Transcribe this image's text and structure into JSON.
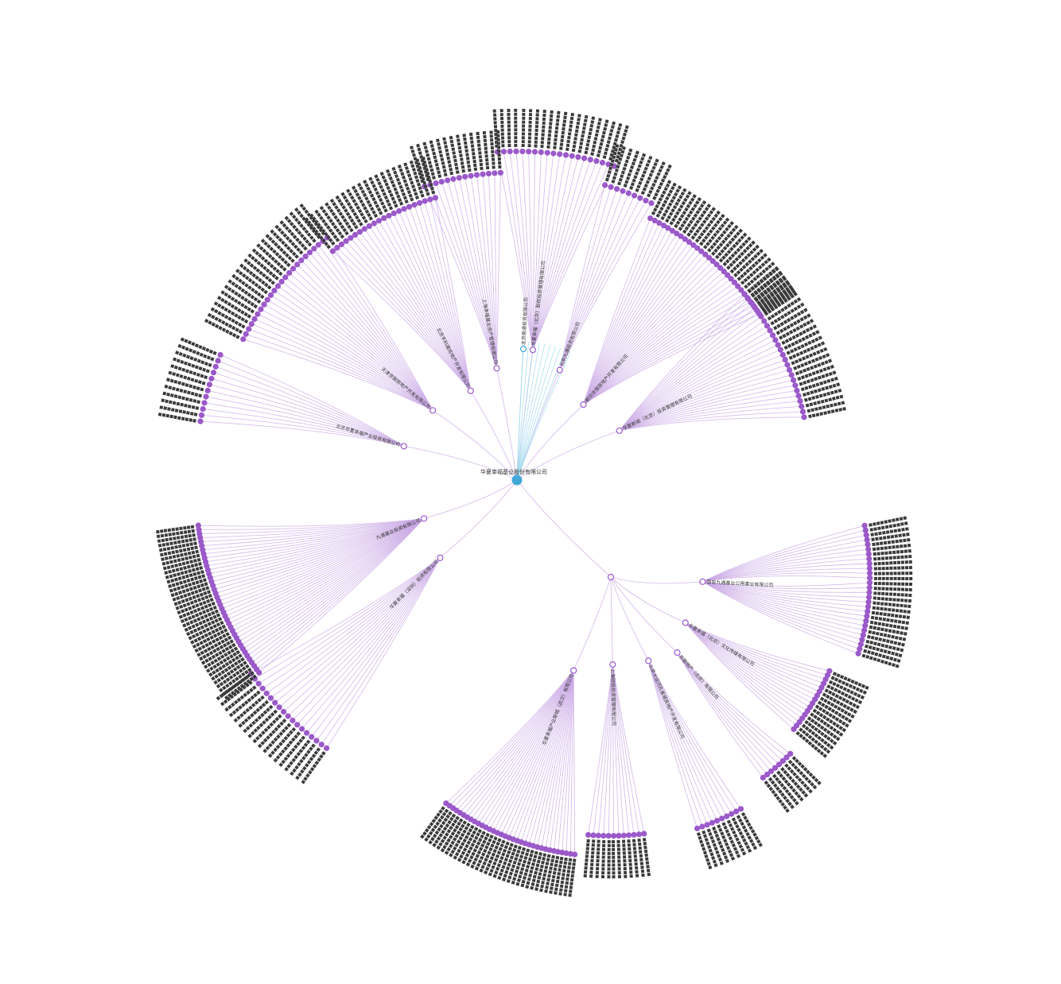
{
  "diagram": {
    "type": "radial-tree",
    "root": {
      "label": "华夏幸福基业股份有限公司"
    },
    "colors": {
      "primary_node": "#9b59c9",
      "primary_link": "#c9a8e6",
      "highlight_node": "#43a8d8",
      "highlight_link": "#9ed8ec",
      "label": "#3a3a3a",
      "background": "#ffffff"
    },
    "branches": [
      {
        "label": "北京丰科建房地产开发有限公司",
        "children": 22
      },
      {
        "label": "上海幸福基业资产管理有限公司",
        "children": 14
      },
      {
        "label": "华夏幸福（北京）股权投资管理有限公司",
        "children": 20
      },
      {
        "label": "北京九通投资有限公司",
        "children": 9
      },
      {
        "label": "廊坊京御房地产开发有限公司",
        "children": 30
      },
      {
        "label": "华夏新城（北京）投资管理有限公司",
        "children": 26
      },
      {
        "label": "天津京御房地产开发有限公司",
        "children": 24
      },
      {
        "label": "北京华夏幸福产业投资有限公司",
        "children": 12
      },
      {
        "label": "九通基业投资有限公司",
        "children": 40
      },
      {
        "label": "华夏幸福（深圳）投资有限公司",
        "children": 18
      },
      {
        "label": "固安九通基业公用事业有限公司",
        "children": 28
      },
      {
        "label": "华夏幸福（北京）文化传媒有限公司",
        "children": 16
      },
      {
        "label": "北京大运河孔雀城房地产开发有限公司",
        "children": 10
      },
      {
        "label": "上海驰锐投资管理有限公司",
        "children": 12
      },
      {
        "label": "华夏幸福产业新城（武汉）有限公司",
        "children": 34
      },
      {
        "label": "京御地产（北京）有限公司",
        "children": 8
      }
    ],
    "highlight_branch": {
      "label": "北京鼎通投资有限公司",
      "children": 10
    }
  }
}
